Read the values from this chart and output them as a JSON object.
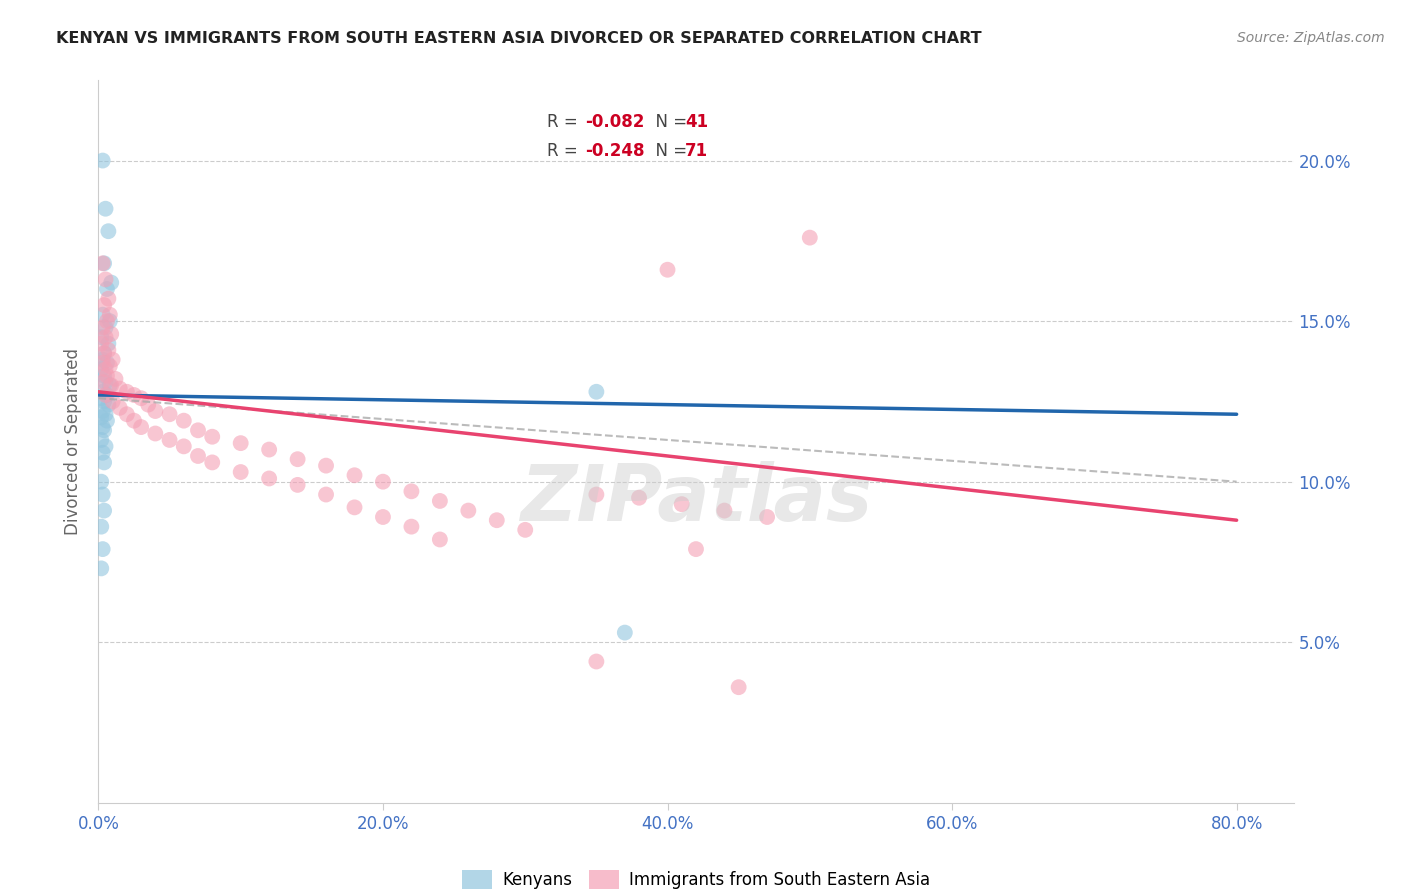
{
  "title": "KENYAN VS IMMIGRANTS FROM SOUTH EASTERN ASIA DIVORCED OR SEPARATED CORRELATION CHART",
  "source": "Source: ZipAtlas.com",
  "ylabel": "Divorced or Separated",
  "ytick_labels": [
    "20.0%",
    "15.0%",
    "10.0%",
    "5.0%"
  ],
  "ytick_values": [
    0.2,
    0.15,
    0.1,
    0.05
  ],
  "xtick_labels": [
    "0.0%",
    "20.0%",
    "40.0%",
    "60.0%",
    "80.0%"
  ],
  "xtick_values": [
    0.0,
    0.2,
    0.4,
    0.6,
    0.8
  ],
  "xlim": [
    0.0,
    0.84
  ],
  "ylim": [
    0.0,
    0.225
  ],
  "watermark": "ZIPatlas",
  "kenyan_color": "#92c5de",
  "immigrant_color": "#f4a0b5",
  "kenyan_trendline_color": "#2166ac",
  "immigrant_trendline_color": "#e8436f",
  "dashed_line_color": "#aaaaaa",
  "kenyan_scatter": [
    [
      0.003,
      0.2
    ],
    [
      0.005,
      0.185
    ],
    [
      0.007,
      0.178
    ],
    [
      0.004,
      0.168
    ],
    [
      0.009,
      0.162
    ],
    [
      0.006,
      0.16
    ],
    [
      0.003,
      0.152
    ],
    [
      0.008,
      0.15
    ],
    [
      0.005,
      0.148
    ],
    [
      0.002,
      0.145
    ],
    [
      0.007,
      0.143
    ],
    [
      0.004,
      0.14
    ],
    [
      0.003,
      0.138
    ],
    [
      0.006,
      0.137
    ],
    [
      0.002,
      0.135
    ],
    [
      0.004,
      0.133
    ],
    [
      0.005,
      0.131
    ],
    [
      0.008,
      0.13
    ],
    [
      0.003,
      0.128
    ],
    [
      0.006,
      0.127
    ],
    [
      0.002,
      0.126
    ],
    [
      0.004,
      0.125
    ],
    [
      0.007,
      0.124
    ],
    [
      0.003,
      0.122
    ],
    [
      0.005,
      0.121
    ],
    [
      0.002,
      0.12
    ],
    [
      0.006,
      0.119
    ],
    [
      0.003,
      0.117
    ],
    [
      0.004,
      0.116
    ],
    [
      0.002,
      0.113
    ],
    [
      0.005,
      0.111
    ],
    [
      0.003,
      0.109
    ],
    [
      0.004,
      0.106
    ],
    [
      0.002,
      0.1
    ],
    [
      0.003,
      0.096
    ],
    [
      0.004,
      0.091
    ],
    [
      0.002,
      0.086
    ],
    [
      0.003,
      0.079
    ],
    [
      0.002,
      0.073
    ],
    [
      0.35,
      0.128
    ],
    [
      0.37,
      0.053
    ]
  ],
  "immigrant_scatter": [
    [
      0.003,
      0.168
    ],
    [
      0.005,
      0.163
    ],
    [
      0.007,
      0.157
    ],
    [
      0.004,
      0.155
    ],
    [
      0.008,
      0.152
    ],
    [
      0.006,
      0.15
    ],
    [
      0.003,
      0.148
    ],
    [
      0.009,
      0.146
    ],
    [
      0.005,
      0.145
    ],
    [
      0.002,
      0.143
    ],
    [
      0.007,
      0.141
    ],
    [
      0.004,
      0.14
    ],
    [
      0.01,
      0.138
    ],
    [
      0.003,
      0.137
    ],
    [
      0.008,
      0.136
    ],
    [
      0.005,
      0.135
    ],
    [
      0.006,
      0.133
    ],
    [
      0.012,
      0.132
    ],
    [
      0.003,
      0.131
    ],
    [
      0.009,
      0.13
    ],
    [
      0.015,
      0.129
    ],
    [
      0.02,
      0.128
    ],
    [
      0.025,
      0.127
    ],
    [
      0.005,
      0.127
    ],
    [
      0.03,
      0.126
    ],
    [
      0.01,
      0.125
    ],
    [
      0.035,
      0.124
    ],
    [
      0.015,
      0.123
    ],
    [
      0.04,
      0.122
    ],
    [
      0.02,
      0.121
    ],
    [
      0.05,
      0.121
    ],
    [
      0.025,
      0.119
    ],
    [
      0.06,
      0.119
    ],
    [
      0.03,
      0.117
    ],
    [
      0.07,
      0.116
    ],
    [
      0.04,
      0.115
    ],
    [
      0.08,
      0.114
    ],
    [
      0.05,
      0.113
    ],
    [
      0.1,
      0.112
    ],
    [
      0.06,
      0.111
    ],
    [
      0.12,
      0.11
    ],
    [
      0.07,
      0.108
    ],
    [
      0.14,
      0.107
    ],
    [
      0.08,
      0.106
    ],
    [
      0.16,
      0.105
    ],
    [
      0.1,
      0.103
    ],
    [
      0.18,
      0.102
    ],
    [
      0.12,
      0.101
    ],
    [
      0.2,
      0.1
    ],
    [
      0.14,
      0.099
    ],
    [
      0.22,
      0.097
    ],
    [
      0.16,
      0.096
    ],
    [
      0.24,
      0.094
    ],
    [
      0.18,
      0.092
    ],
    [
      0.26,
      0.091
    ],
    [
      0.2,
      0.089
    ],
    [
      0.28,
      0.088
    ],
    [
      0.22,
      0.086
    ],
    [
      0.3,
      0.085
    ],
    [
      0.24,
      0.082
    ],
    [
      0.42,
      0.079
    ],
    [
      0.5,
      0.176
    ],
    [
      0.4,
      0.166
    ],
    [
      0.35,
      0.044
    ],
    [
      0.45,
      0.036
    ],
    [
      0.35,
      0.096
    ],
    [
      0.38,
      0.095
    ],
    [
      0.41,
      0.093
    ],
    [
      0.44,
      0.091
    ],
    [
      0.47,
      0.089
    ]
  ]
}
